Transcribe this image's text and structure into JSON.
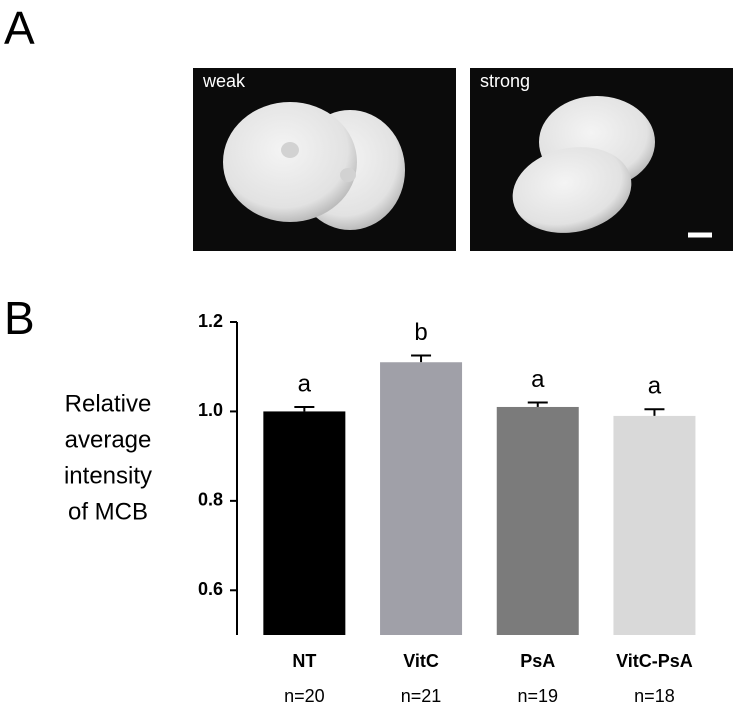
{
  "panel_labels": [
    "A",
    "B"
  ],
  "images": [
    {
      "label": "weak"
    },
    {
      "label": "strong"
    }
  ],
  "chart_data": {
    "type": "bar",
    "ylabel_lines": [
      "Relative",
      "average",
      "intensity",
      "of MCB"
    ],
    "categories": [
      "NT",
      "VitC",
      "PsA",
      "VitC-PsA"
    ],
    "values": [
      1.0,
      1.11,
      1.01,
      0.99
    ],
    "errors": [
      0.01,
      0.015,
      0.01,
      0.015
    ],
    "colors": [
      "#000000",
      "#a0a0a8",
      "#7b7b7b",
      "#d9d9d9"
    ],
    "sig_labels": [
      "a",
      "b",
      "a",
      "a"
    ],
    "n_labels": [
      "n=20",
      "n=21",
      "n=19",
      "n=18"
    ],
    "ylim": [
      0.5,
      1.2
    ],
    "yticks": [
      0.6,
      0.8,
      {
        "value": 1.0,
        "label": "1.0"
      },
      1.2
    ]
  }
}
